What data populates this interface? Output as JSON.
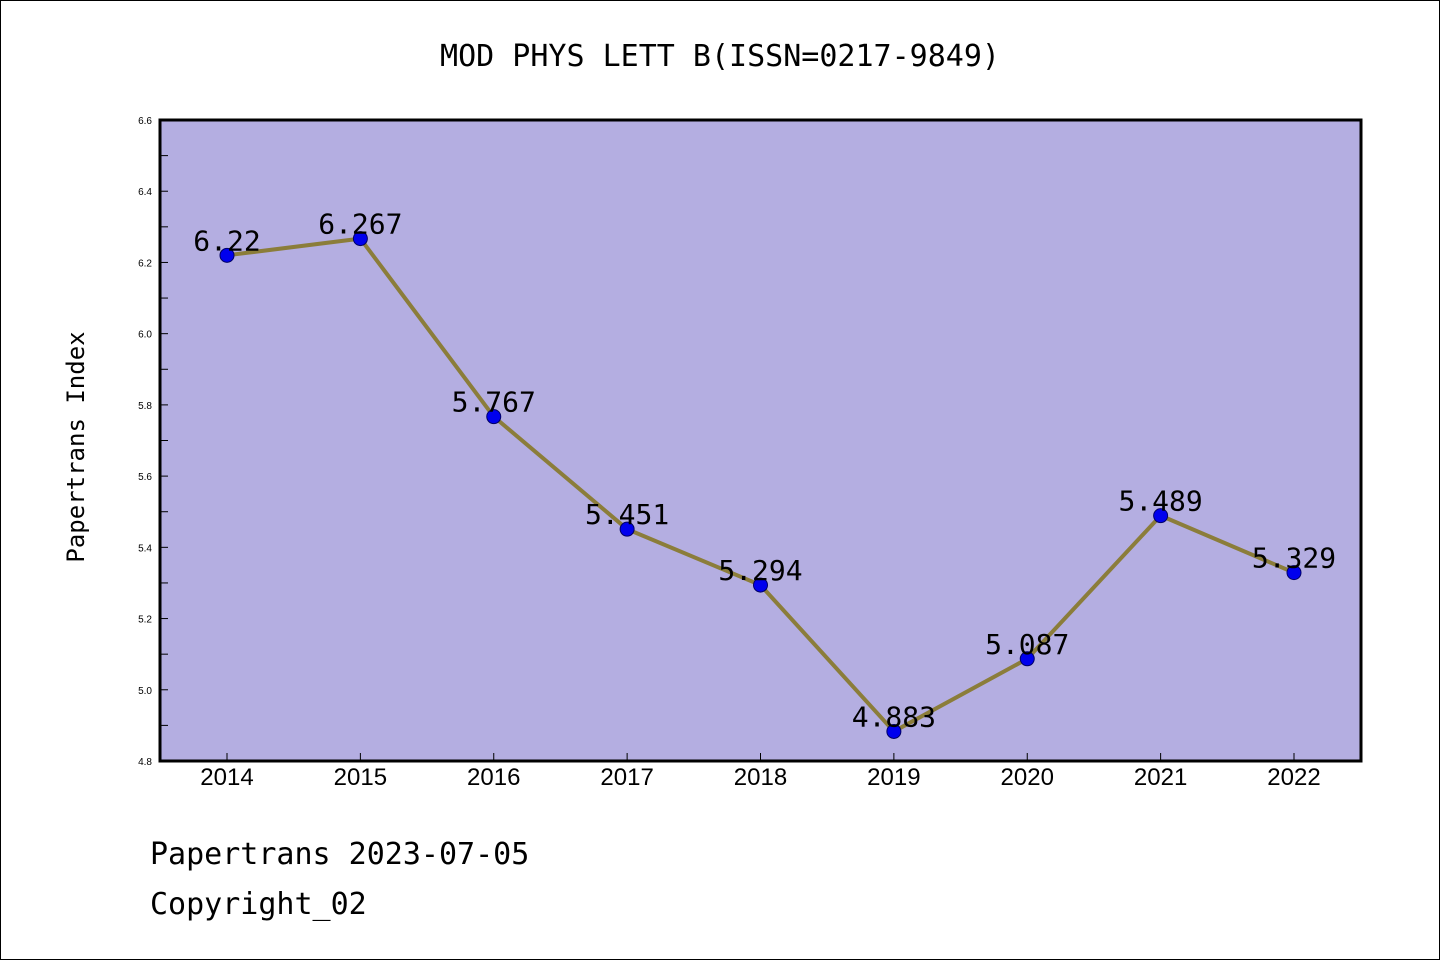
{
  "chart_data": {
    "type": "line",
    "title": "MOD PHYS LETT B(ISSN=0217-9849)",
    "xlabel": "",
    "ylabel": "Papertrans Index",
    "categories": [
      "2014",
      "2015",
      "2016",
      "2017",
      "2018",
      "2019",
      "2020",
      "2021",
      "2022"
    ],
    "series": [
      {
        "values": [
          6.22,
          6.267,
          5.767,
          5.451,
          5.294,
          4.883,
          5.087,
          5.489,
          5.329
        ],
        "labels": [
          "6.22",
          "6.267",
          "5.767",
          "5.451",
          "5.294",
          "4.883",
          "5.087",
          "5.489",
          "5.329"
        ]
      }
    ],
    "ylim": [
      4.8,
      6.6
    ],
    "yticks": [
      "4.8",
      "5.0",
      "5.2",
      "5.4",
      "5.6",
      "5.8",
      "6.0",
      "6.2",
      "6.4",
      "6.6"
    ],
    "grid": false,
    "colors": {
      "plot_background": "#b4aee1",
      "line": "#8b7d3a",
      "marker": "#0000ee"
    }
  },
  "footer": {
    "date_line": "Papertrans 2023-07-05",
    "copyright": "Copyright_02"
  }
}
